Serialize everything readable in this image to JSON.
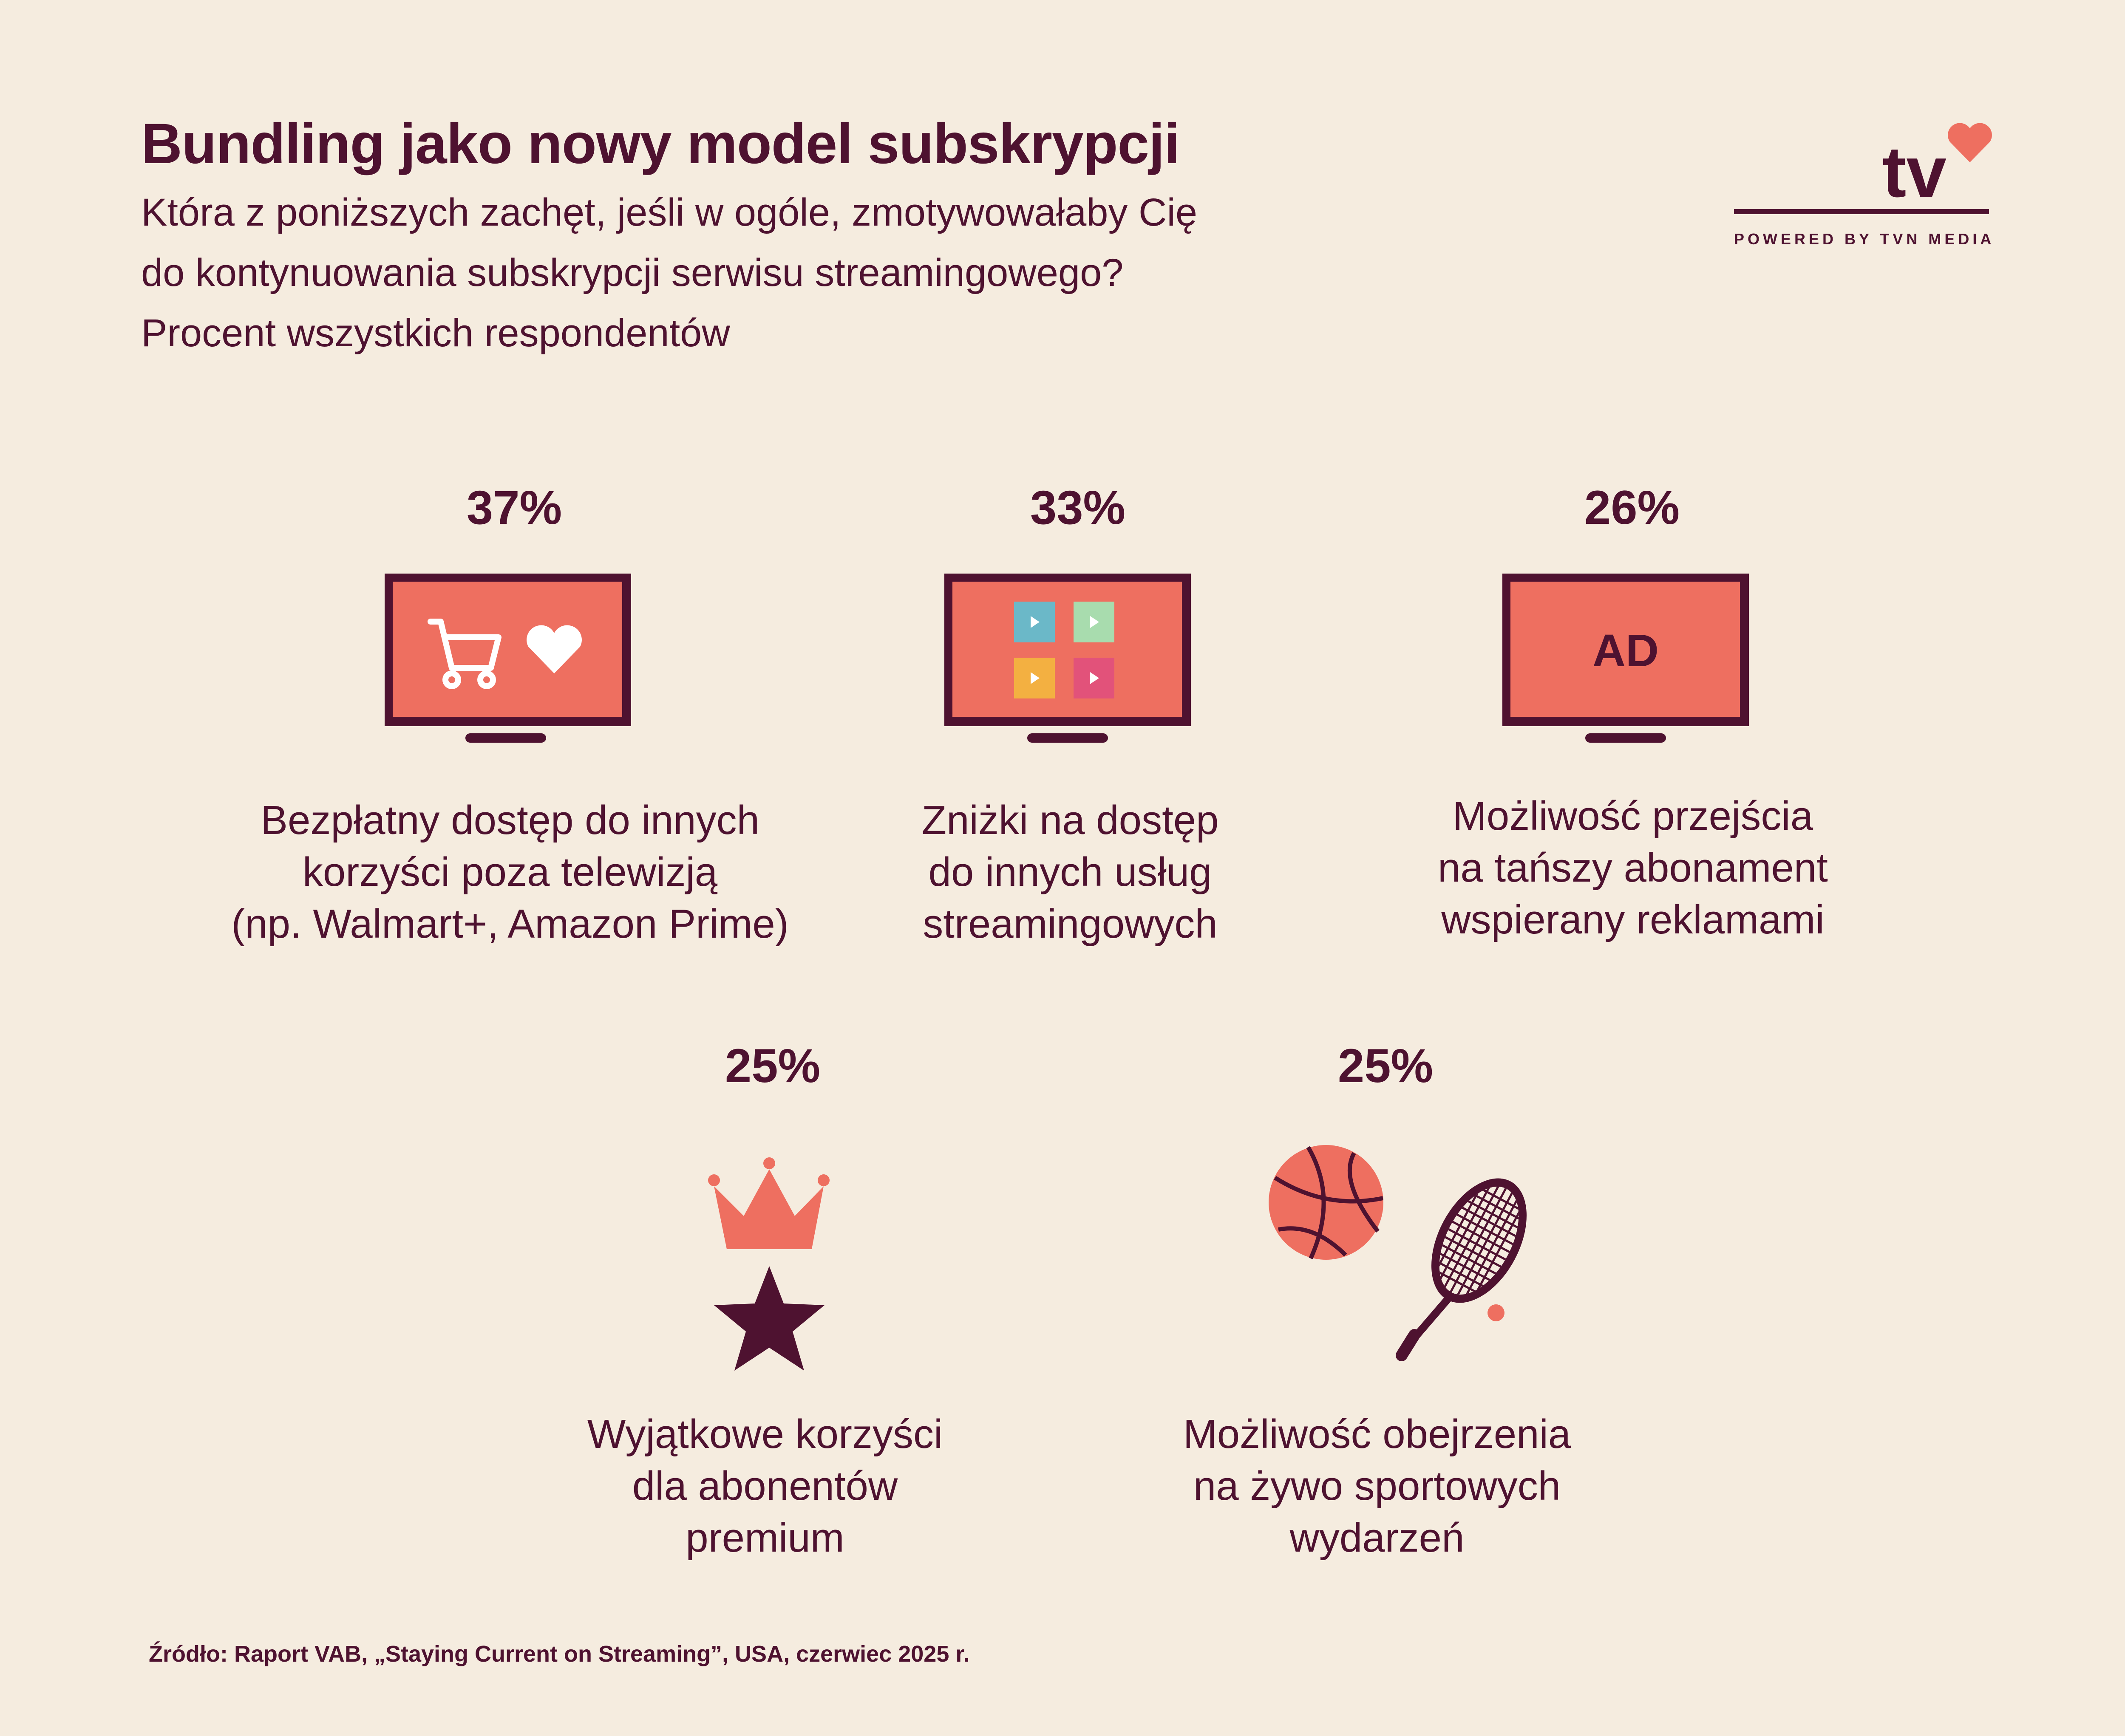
{
  "header": {
    "title": "Bundling jako nowy model subskrypcji",
    "subtitle_lines": [
      "Która z poniższych zachęt, jeśli w ogóle, zmotywowałaby Cię",
      "do kontynuowania subskrypcji serwisu streamingowego?",
      "Procent wszystkich respondentów"
    ]
  },
  "logo": {
    "brand": "tv",
    "tagline": "POWERED BY TVN MEDIA"
  },
  "items": [
    {
      "percent": "37%",
      "icon": "tv-cart-heart-icon",
      "caption_lines": [
        "Bezpłatny dostęp do innych",
        "korzyści poza telewizją",
        "(np. Walmart+, Amazon Prime)"
      ]
    },
    {
      "percent": "33%",
      "icon": "tv-streaming-tiles-icon",
      "caption_lines": [
        "Zniżki na dostęp",
        "do innych usług",
        "streamingowych"
      ]
    },
    {
      "percent": "26%",
      "icon": "tv-ad-icon",
      "icon_text": "AD",
      "caption_lines": [
        "Możliwość przejścia",
        "na tańszy abonament",
        "wspierany reklamami"
      ]
    },
    {
      "percent": "25%",
      "icon": "crown-star-icon",
      "caption_lines": [
        "Wyjątkowe korzyści",
        "dla abonentów",
        "premium"
      ]
    },
    {
      "percent": "25%",
      "icon": "basketball-tennis-icon",
      "caption_lines": [
        "Możliwość obejrzenia",
        "na żywo sportowych",
        "wydarzeń"
      ]
    }
  ],
  "source": "Źródło: Raport VAB, „Staying Current on Streaming”, USA, czerwiec 2025 r.",
  "colors": {
    "background": "#f5ecdf",
    "text": "#4e1230",
    "accent": "#ee6f60"
  }
}
